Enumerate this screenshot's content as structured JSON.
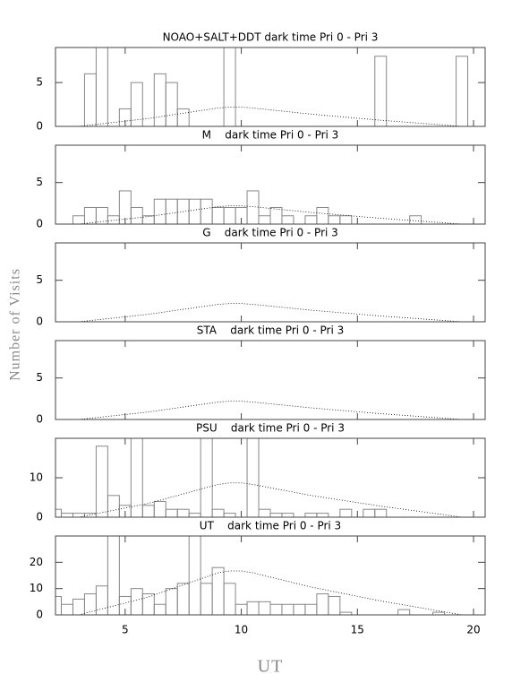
{
  "ylabel": "Number of Visits",
  "xlabel": "UT",
  "chart_data": [
    {
      "type": "histogram",
      "title": "NOAO+SALT+DDT dark time Pri 0 - Pri 3",
      "color": "#888888",
      "bins": [
        1.75,
        2.25,
        2.75,
        3.25,
        3.75,
        4.25,
        4.75,
        5.25,
        5.75,
        6.25,
        6.75,
        7.25,
        7.75,
        8.25,
        8.75,
        9.25,
        9.75,
        10.25,
        10.75,
        11.25,
        11.75,
        12.25,
        12.75,
        13.25,
        13.75,
        14.25,
        14.75,
        15.25,
        15.75,
        16.25,
        16.75,
        17.25,
        17.75,
        18.25,
        18.75,
        19.25,
        19.75,
        20.25
      ],
      "values": [
        0,
        0,
        0,
        6,
        9,
        0,
        2,
        5,
        0,
        6,
        5,
        2,
        0,
        0,
        0,
        9,
        0,
        0,
        0,
        0,
        0,
        0,
        0,
        0,
        0,
        0,
        0,
        0,
        8,
        0,
        0,
        0,
        0,
        0,
        0,
        8,
        0
      ],
      "curve": {
        "x": [
          3,
          6,
          9,
          9.5,
          10,
          10.5,
          13,
          16,
          19.5
        ],
        "values": [
          0,
          0.9,
          2.1,
          2.2,
          2.2,
          2.1,
          1.4,
          0.7,
          0
        ]
      },
      "xlim": [
        2,
        20.5
      ],
      "xticks": [
        5,
        10,
        15,
        20
      ],
      "ylim": [
        0,
        9
      ],
      "yticks": [
        0,
        5
      ]
    },
    {
      "type": "histogram",
      "title": "M    dark time Pri 0 - Pri 3",
      "color": "#888888",
      "bins": [
        1.75,
        2.25,
        2.75,
        3.25,
        3.75,
        4.25,
        4.75,
        5.25,
        5.75,
        6.25,
        6.75,
        7.25,
        7.75,
        8.25,
        8.75,
        9.25,
        9.75,
        10.25,
        10.75,
        11.25,
        11.75,
        12.25,
        12.75,
        13.25,
        13.75,
        14.25,
        14.75,
        15.25,
        15.75,
        16.25,
        16.75,
        17.25,
        17.75,
        18.25,
        18.75,
        19.25,
        19.75,
        20.25
      ],
      "values": [
        0,
        0,
        1,
        2,
        2,
        1,
        4,
        2,
        1,
        3,
        3,
        3,
        3,
        3,
        2,
        2,
        2,
        4,
        1,
        2,
        1,
        0,
        1,
        2,
        1,
        1,
        0,
        0,
        0,
        0,
        0,
        1,
        0,
        0,
        0,
        0,
        0
      ],
      "curve": {
        "x": [
          3,
          6,
          9,
          9.5,
          10,
          10.5,
          13,
          16,
          19.5
        ],
        "values": [
          0,
          0.9,
          2.1,
          2.2,
          2.2,
          2.1,
          1.4,
          0.7,
          0
        ]
      },
      "xlim": [
        2,
        20.5
      ],
      "xticks": [
        5,
        10,
        15,
        20
      ],
      "ylim": [
        0,
        9.5
      ],
      "yticks": [
        0,
        5
      ]
    },
    {
      "type": "histogram",
      "title": "G    dark time Pri 0 - Pri 3",
      "color": "#888888",
      "bins": [
        1.75,
        2.25,
        2.75,
        3.25,
        3.75,
        4.25,
        4.75,
        5.25,
        5.75,
        6.25,
        6.75,
        7.25,
        7.75,
        8.25,
        8.75,
        9.25,
        9.75,
        10.25,
        10.75,
        11.25,
        11.75,
        12.25,
        12.75,
        13.25,
        13.75,
        14.25,
        14.75,
        15.25,
        15.75,
        16.25,
        16.75,
        17.25,
        17.75,
        18.25,
        18.75,
        19.25,
        19.75,
        20.25
      ],
      "values": [
        0,
        0,
        0,
        0,
        0,
        0,
        0,
        0,
        0,
        0,
        0,
        0,
        0,
        0,
        0,
        0,
        0,
        0,
        0,
        0,
        0,
        0,
        0,
        0,
        0,
        0,
        0,
        0,
        0,
        0,
        0,
        0,
        0,
        0,
        0,
        0,
        0
      ],
      "curve": {
        "x": [
          3,
          6,
          9,
          9.5,
          10,
          10.5,
          13,
          16,
          19.5
        ],
        "values": [
          0,
          0.9,
          2.1,
          2.2,
          2.2,
          2.1,
          1.4,
          0.7,
          0
        ]
      },
      "xlim": [
        2,
        20.5
      ],
      "xticks": [
        5,
        10,
        15,
        20
      ],
      "ylim": [
        0,
        9.5
      ],
      "yticks": [
        0,
        5
      ]
    },
    {
      "type": "histogram",
      "title": "STA    dark time Pri 0 - Pri 3",
      "color": "#888888",
      "bins": [
        1.75,
        2.25,
        2.75,
        3.25,
        3.75,
        4.25,
        4.75,
        5.25,
        5.75,
        6.25,
        6.75,
        7.25,
        7.75,
        8.25,
        8.75,
        9.25,
        9.75,
        10.25,
        10.75,
        11.25,
        11.75,
        12.25,
        12.75,
        13.25,
        13.75,
        14.25,
        14.75,
        15.25,
        15.75,
        16.25,
        16.75,
        17.25,
        17.75,
        18.25,
        18.75,
        19.25,
        19.75,
        20.25
      ],
      "values": [
        0,
        0,
        0,
        0,
        0,
        0,
        0,
        0,
        0,
        0,
        0,
        0,
        0,
        0,
        0,
        0,
        0,
        0,
        0,
        0,
        0,
        0,
        0,
        0,
        0,
        0,
        0,
        0,
        0,
        0,
        0,
        0,
        0,
        0,
        0,
        0,
        0
      ],
      "curve": {
        "x": [
          3,
          6,
          9,
          9.5,
          10,
          10.5,
          13,
          16,
          19.5
        ],
        "values": [
          0,
          0.9,
          2.1,
          2.2,
          2.2,
          2.1,
          1.4,
          0.7,
          0
        ]
      },
      "xlim": [
        2,
        20.5
      ],
      "xticks": [
        5,
        10,
        15,
        20
      ],
      "ylim": [
        0,
        9.5
      ],
      "yticks": [
        0,
        5
      ]
    },
    {
      "type": "histogram",
      "title": "PSU    dark time Pri 0 - Pri 3",
      "color": "#888888",
      "bins": [
        1.75,
        2.25,
        2.75,
        3.25,
        3.75,
        4.25,
        4.75,
        5.25,
        5.75,
        6.25,
        6.75,
        7.25,
        7.75,
        8.25,
        8.75,
        9.25,
        9.75,
        10.25,
        10.75,
        11.25,
        11.75,
        12.25,
        12.75,
        13.25,
        13.75,
        14.25,
        14.75,
        15.25,
        15.75,
        16.25,
        16.75,
        17.25,
        17.75,
        18.25,
        18.75,
        19.25,
        19.75,
        20.25
      ],
      "values": [
        2,
        1,
        1,
        1,
        18,
        5.5,
        3,
        20,
        3,
        4,
        2,
        2,
        1,
        20,
        2,
        1,
        0,
        20,
        2,
        1,
        1,
        0,
        1,
        1,
        0,
        2,
        0,
        2,
        2,
        0,
        0,
        0,
        0,
        0,
        0,
        0,
        0
      ],
      "curve": {
        "x": [
          3,
          6,
          9,
          9.5,
          10,
          10.5,
          13,
          16,
          19.5
        ],
        "values": [
          0,
          3.5,
          8.3,
          8.7,
          8.7,
          8.3,
          5.5,
          2.8,
          0
        ]
      },
      "xlim": [
        2,
        20.5
      ],
      "xticks": [
        5,
        10,
        15,
        20
      ],
      "ylim": [
        0,
        20
      ],
      "yticks": [
        0,
        10
      ]
    },
    {
      "type": "histogram",
      "title": "UT    dark time Pri 0 - Pri 3",
      "color": "#888888",
      "bins": [
        1.75,
        2.25,
        2.75,
        3.25,
        3.75,
        4.25,
        4.75,
        5.25,
        5.75,
        6.25,
        6.75,
        7.25,
        7.75,
        8.25,
        8.75,
        9.25,
        9.75,
        10.25,
        10.75,
        11.25,
        11.75,
        12.25,
        12.75,
        13.25,
        13.75,
        14.25,
        14.75,
        15.25,
        15.75,
        16.25,
        16.75,
        17.25,
        17.75,
        18.25,
        18.75,
        19.25,
        19.75,
        20.25
      ],
      "values": [
        7,
        4,
        6,
        8,
        11,
        30,
        7,
        10,
        8,
        4,
        10,
        12,
        30,
        12,
        18,
        12,
        4,
        5,
        5,
        4,
        4,
        4,
        4,
        8,
        7,
        1,
        0,
        0,
        0,
        0,
        2,
        0,
        0,
        1,
        0,
        0,
        0
      ],
      "curve": {
        "x": [
          3,
          6,
          9,
          9.5,
          10,
          10.5,
          13,
          16,
          19.5
        ],
        "values": [
          0,
          6.8,
          16,
          16.7,
          16.7,
          16,
          10.6,
          5.3,
          0
        ]
      },
      "xlim": [
        2,
        20.5
      ],
      "xticks": [
        5,
        10,
        15,
        20
      ],
      "ylim": [
        0,
        30
      ],
      "yticks": [
        0,
        10,
        20
      ]
    }
  ]
}
